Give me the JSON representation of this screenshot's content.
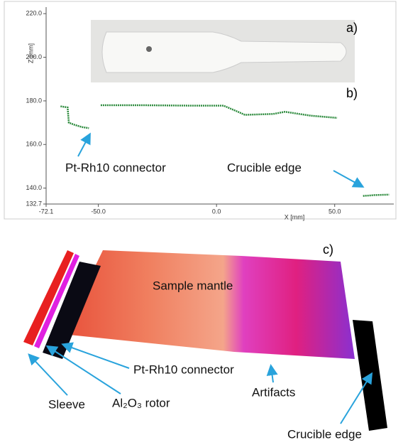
{
  "chart_data": {
    "type": "line",
    "panel_labels": [
      "a)",
      "b)"
    ],
    "x_label": "X [mm]",
    "y_label": "Z [mm]",
    "annotations": [
      "Pt-Rh10 connector",
      "Crucible edge"
    ],
    "x": [
      -66,
      -63,
      -62.5,
      -60,
      -57,
      -54,
      -52,
      -49,
      -30,
      -10,
      3,
      8,
      12,
      18,
      24,
      29,
      35,
      40,
      51,
      56,
      62,
      67,
      73
    ],
    "series": [
      {
        "color": "#2e8b3e",
        "values": [
          177.5,
          177,
          170,
          169,
          168,
          167.5,
          null,
          178,
          178,
          177.8,
          177.8,
          175.5,
          173.6,
          173.8,
          174,
          175,
          174,
          173.2,
          172.2,
          null,
          136.4,
          136.8,
          137
        ]
      }
    ],
    "xlim": [
      -72.1,
      75
    ],
    "ylim": [
      132.7,
      223
    ],
    "xticks": [
      -72.1,
      {
        "value": -50,
        "label": "-50.0"
      },
      {
        "value": 0,
        "label": "0.0"
      },
      {
        "value": 50,
        "label": "50.0"
      }
    ],
    "yticks": [
      {
        "value": 220,
        "label": "220.0"
      },
      {
        "value": 200,
        "label": "200.0"
      },
      {
        "value": 180,
        "label": "180.0"
      },
      {
        "value": 160,
        "label": "160.0"
      },
      {
        "value": 140,
        "label": "140.0"
      },
      132.7
    ]
  },
  "panel_c": {
    "label": "c)",
    "sample": "Sample mantle",
    "connector": "Pt-Rh10 connector",
    "sleeve": "Sleeve",
    "rotor": "Al₂O₃ rotor",
    "artifacts": "Artifacts",
    "crucible": "Crucible edge"
  }
}
